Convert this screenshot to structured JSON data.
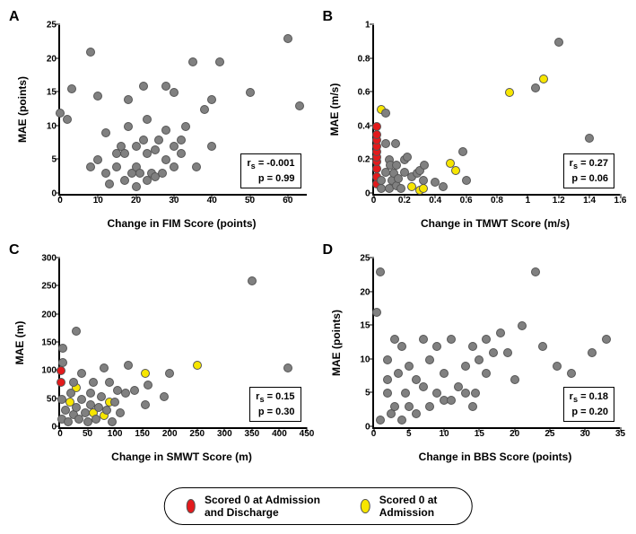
{
  "colors": {
    "gray": "#808080",
    "red": "#e31a1c",
    "yellow": "#f7e600",
    "border": "#555555",
    "bg": "#ffffff"
  },
  "marker_size": 10,
  "legend": {
    "items": [
      {
        "color_key": "red",
        "label": "Scored 0 at Admission and Discharge"
      },
      {
        "color_key": "yellow",
        "label": "Scored 0 at Admission"
      }
    ]
  },
  "panels": [
    {
      "id": "A",
      "label": "A",
      "xlabel": "Change in FIM Score (points)",
      "ylabel": "MAE (points)",
      "xlim": [
        0,
        65
      ],
      "ylim": [
        0,
        25
      ],
      "xticks": [
        0,
        10,
        20,
        30,
        40,
        50,
        60
      ],
      "yticks": [
        0,
        5,
        10,
        15,
        20,
        25
      ],
      "stats": {
        "rs": "-0.001",
        "p": "0.99"
      },
      "points": [
        {
          "x": 0,
          "y": 12,
          "c": "gray"
        },
        {
          "x": 2,
          "y": 11,
          "c": "gray"
        },
        {
          "x": 3,
          "y": 15.5,
          "c": "gray"
        },
        {
          "x": 8,
          "y": 4,
          "c": "gray"
        },
        {
          "x": 8,
          "y": 21,
          "c": "gray"
        },
        {
          "x": 10,
          "y": 5,
          "c": "gray"
        },
        {
          "x": 10,
          "y": 14.5,
          "c": "gray"
        },
        {
          "x": 12,
          "y": 9,
          "c": "gray"
        },
        {
          "x": 13,
          "y": 1.5,
          "c": "gray"
        },
        {
          "x": 12,
          "y": 3,
          "c": "gray"
        },
        {
          "x": 15,
          "y": 4,
          "c": "gray"
        },
        {
          "x": 15,
          "y": 6,
          "c": "gray"
        },
        {
          "x": 16,
          "y": 7,
          "c": "gray"
        },
        {
          "x": 17,
          "y": 6,
          "c": "gray"
        },
        {
          "x": 17,
          "y": 2,
          "c": "gray"
        },
        {
          "x": 18,
          "y": 14,
          "c": "gray"
        },
        {
          "x": 18,
          "y": 10,
          "c": "gray"
        },
        {
          "x": 19,
          "y": 3,
          "c": "gray"
        },
        {
          "x": 20,
          "y": 1,
          "c": "gray"
        },
        {
          "x": 20,
          "y": 4,
          "c": "gray"
        },
        {
          "x": 20,
          "y": 7,
          "c": "gray"
        },
        {
          "x": 21,
          "y": 3,
          "c": "gray"
        },
        {
          "x": 22,
          "y": 16,
          "c": "gray"
        },
        {
          "x": 22,
          "y": 8,
          "c": "gray"
        },
        {
          "x": 23,
          "y": 6,
          "c": "gray"
        },
        {
          "x": 23,
          "y": 2,
          "c": "gray"
        },
        {
          "x": 24,
          "y": 3,
          "c": "gray"
        },
        {
          "x": 23,
          "y": 11,
          "c": "gray"
        },
        {
          "x": 25,
          "y": 6.5,
          "c": "gray"
        },
        {
          "x": 25,
          "y": 2.5,
          "c": "gray"
        },
        {
          "x": 26,
          "y": 8,
          "c": "gray"
        },
        {
          "x": 27,
          "y": 3,
          "c": "gray"
        },
        {
          "x": 28,
          "y": 5,
          "c": "gray"
        },
        {
          "x": 28,
          "y": 16,
          "c": "gray"
        },
        {
          "x": 28,
          "y": 9.5,
          "c": "gray"
        },
        {
          "x": 30,
          "y": 7,
          "c": "gray"
        },
        {
          "x": 30,
          "y": 15,
          "c": "gray"
        },
        {
          "x": 30,
          "y": 4,
          "c": "gray"
        },
        {
          "x": 32,
          "y": 8,
          "c": "gray"
        },
        {
          "x": 32,
          "y": 6,
          "c": "gray"
        },
        {
          "x": 33,
          "y": 10,
          "c": "gray"
        },
        {
          "x": 35,
          "y": 19.5,
          "c": "gray"
        },
        {
          "x": 36,
          "y": 4,
          "c": "gray"
        },
        {
          "x": 38,
          "y": 12.5,
          "c": "gray"
        },
        {
          "x": 40,
          "y": 7,
          "c": "gray"
        },
        {
          "x": 40,
          "y": 14,
          "c": "gray"
        },
        {
          "x": 42,
          "y": 19.5,
          "c": "gray"
        },
        {
          "x": 50,
          "y": 15,
          "c": "gray"
        },
        {
          "x": 60,
          "y": 23,
          "c": "gray"
        },
        {
          "x": 63,
          "y": 13,
          "c": "gray"
        }
      ]
    },
    {
      "id": "B",
      "label": "B",
      "xlabel": "Change in TMWT Score (m/s)",
      "ylabel": "MAE (m/s)",
      "xlim": [
        0,
        1.6
      ],
      "ylim": [
        0,
        1.0
      ],
      "xticks": [
        0,
        0.2,
        0.4,
        0.6,
        0.8,
        1.0,
        1.2,
        1.4,
        1.6
      ],
      "yticks": [
        0,
        0.2,
        0.4,
        0.6,
        0.8,
        1.0
      ],
      "stats": {
        "rs": "0.27",
        "p": "0.06"
      },
      "points": [
        {
          "x": 0.02,
          "y": 0.06,
          "c": "red"
        },
        {
          "x": 0.02,
          "y": 0.1,
          "c": "red"
        },
        {
          "x": 0.02,
          "y": 0.15,
          "c": "red"
        },
        {
          "x": 0.02,
          "y": 0.19,
          "c": "red"
        },
        {
          "x": 0.02,
          "y": 0.22,
          "c": "red"
        },
        {
          "x": 0.02,
          "y": 0.25,
          "c": "red"
        },
        {
          "x": 0.02,
          "y": 0.28,
          "c": "red"
        },
        {
          "x": 0.02,
          "y": 0.32,
          "c": "red"
        },
        {
          "x": 0.02,
          "y": 0.35,
          "c": "red"
        },
        {
          "x": 0.02,
          "y": 0.4,
          "c": "red"
        },
        {
          "x": 0.05,
          "y": 0.5,
          "c": "yellow"
        },
        {
          "x": 0.25,
          "y": 0.04,
          "c": "yellow"
        },
        {
          "x": 0.3,
          "y": 0.02,
          "c": "yellow"
        },
        {
          "x": 0.32,
          "y": 0.03,
          "c": "yellow"
        },
        {
          "x": 0.5,
          "y": 0.18,
          "c": "yellow"
        },
        {
          "x": 0.53,
          "y": 0.14,
          "c": "yellow"
        },
        {
          "x": 0.88,
          "y": 0.6,
          "c": "yellow"
        },
        {
          "x": 1.1,
          "y": 0.68,
          "c": "yellow"
        },
        {
          "x": 0.05,
          "y": 0.03,
          "c": "gray"
        },
        {
          "x": 0.05,
          "y": 0.08,
          "c": "gray"
        },
        {
          "x": 0.08,
          "y": 0.3,
          "c": "gray"
        },
        {
          "x": 0.08,
          "y": 0.48,
          "c": "gray"
        },
        {
          "x": 0.08,
          "y": 0.13,
          "c": "gray"
        },
        {
          "x": 0.1,
          "y": 0.03,
          "c": "gray"
        },
        {
          "x": 0.1,
          "y": 0.2,
          "c": "gray"
        },
        {
          "x": 0.11,
          "y": 0.17,
          "c": "gray"
        },
        {
          "x": 0.12,
          "y": 0.08,
          "c": "gray"
        },
        {
          "x": 0.13,
          "y": 0.12,
          "c": "gray"
        },
        {
          "x": 0.14,
          "y": 0.3,
          "c": "gray"
        },
        {
          "x": 0.15,
          "y": 0.05,
          "c": "gray"
        },
        {
          "x": 0.15,
          "y": 0.17,
          "c": "gray"
        },
        {
          "x": 0.16,
          "y": 0.09,
          "c": "gray"
        },
        {
          "x": 0.18,
          "y": 0.03,
          "c": "gray"
        },
        {
          "x": 0.2,
          "y": 0.13,
          "c": "gray"
        },
        {
          "x": 0.2,
          "y": 0.2,
          "c": "gray"
        },
        {
          "x": 0.22,
          "y": 0.22,
          "c": "gray"
        },
        {
          "x": 0.25,
          "y": 0.1,
          "c": "gray"
        },
        {
          "x": 0.28,
          "y": 0.12,
          "c": "gray"
        },
        {
          "x": 0.3,
          "y": 0.14,
          "c": "gray"
        },
        {
          "x": 0.32,
          "y": 0.08,
          "c": "gray"
        },
        {
          "x": 0.33,
          "y": 0.17,
          "c": "gray"
        },
        {
          "x": 0.4,
          "y": 0.07,
          "c": "gray"
        },
        {
          "x": 0.45,
          "y": 0.04,
          "c": "gray"
        },
        {
          "x": 0.58,
          "y": 0.25,
          "c": "gray"
        },
        {
          "x": 0.6,
          "y": 0.08,
          "c": "gray"
        },
        {
          "x": 1.05,
          "y": 0.63,
          "c": "gray"
        },
        {
          "x": 1.2,
          "y": 0.9,
          "c": "gray"
        },
        {
          "x": 1.4,
          "y": 0.33,
          "c": "gray"
        }
      ]
    },
    {
      "id": "C",
      "label": "C",
      "xlabel": "Change in SMWT Score (m)",
      "ylabel": "MAE (m)",
      "xlim": [
        0,
        450
      ],
      "ylim": [
        0,
        300
      ],
      "xticks": [
        0,
        50,
        100,
        150,
        200,
        250,
        300,
        350,
        400,
        450
      ],
      "yticks": [
        0,
        50,
        100,
        150,
        200,
        250,
        300
      ],
      "stats": {
        "rs": "0.15",
        "p": "0.30"
      },
      "points": [
        {
          "x": 2,
          "y": 80,
          "c": "red"
        },
        {
          "x": 2,
          "y": 100,
          "c": "red"
        },
        {
          "x": 18,
          "y": 45,
          "c": "yellow"
        },
        {
          "x": 30,
          "y": 70,
          "c": "yellow"
        },
        {
          "x": 60,
          "y": 25,
          "c": "yellow"
        },
        {
          "x": 80,
          "y": 20,
          "c": "yellow"
        },
        {
          "x": 90,
          "y": 45,
          "c": "yellow"
        },
        {
          "x": 155,
          "y": 95,
          "c": "yellow"
        },
        {
          "x": 250,
          "y": 110,
          "c": "yellow"
        },
        {
          "x": 3,
          "y": 15,
          "c": "gray"
        },
        {
          "x": 3,
          "y": 50,
          "c": "gray"
        },
        {
          "x": 5,
          "y": 115,
          "c": "gray"
        },
        {
          "x": 5,
          "y": 140,
          "c": "gray"
        },
        {
          "x": 10,
          "y": 30,
          "c": "gray"
        },
        {
          "x": 15,
          "y": 10,
          "c": "gray"
        },
        {
          "x": 20,
          "y": 60,
          "c": "gray"
        },
        {
          "x": 25,
          "y": 22,
          "c": "gray"
        },
        {
          "x": 25,
          "y": 80,
          "c": "gray"
        },
        {
          "x": 30,
          "y": 35,
          "c": "gray"
        },
        {
          "x": 30,
          "y": 170,
          "c": "gray"
        },
        {
          "x": 35,
          "y": 15,
          "c": "gray"
        },
        {
          "x": 40,
          "y": 50,
          "c": "gray"
        },
        {
          "x": 40,
          "y": 95,
          "c": "gray"
        },
        {
          "x": 45,
          "y": 25,
          "c": "gray"
        },
        {
          "x": 50,
          "y": 10,
          "c": "gray"
        },
        {
          "x": 55,
          "y": 40,
          "c": "gray"
        },
        {
          "x": 55,
          "y": 60,
          "c": "gray"
        },
        {
          "x": 60,
          "y": 80,
          "c": "gray"
        },
        {
          "x": 65,
          "y": 15,
          "c": "gray"
        },
        {
          "x": 70,
          "y": 35,
          "c": "gray"
        },
        {
          "x": 75,
          "y": 55,
          "c": "gray"
        },
        {
          "x": 80,
          "y": 105,
          "c": "gray"
        },
        {
          "x": 85,
          "y": 30,
          "c": "gray"
        },
        {
          "x": 90,
          "y": 80,
          "c": "gray"
        },
        {
          "x": 95,
          "y": 10,
          "c": "gray"
        },
        {
          "x": 100,
          "y": 45,
          "c": "gray"
        },
        {
          "x": 105,
          "y": 65,
          "c": "gray"
        },
        {
          "x": 110,
          "y": 25,
          "c": "gray"
        },
        {
          "x": 120,
          "y": 60,
          "c": "gray"
        },
        {
          "x": 125,
          "y": 110,
          "c": "gray"
        },
        {
          "x": 135,
          "y": 65,
          "c": "gray"
        },
        {
          "x": 155,
          "y": 40,
          "c": "gray"
        },
        {
          "x": 160,
          "y": 75,
          "c": "gray"
        },
        {
          "x": 190,
          "y": 55,
          "c": "gray"
        },
        {
          "x": 200,
          "y": 95,
          "c": "gray"
        },
        {
          "x": 350,
          "y": 260,
          "c": "gray"
        },
        {
          "x": 415,
          "y": 105,
          "c": "gray"
        }
      ]
    },
    {
      "id": "D",
      "label": "D",
      "xlabel": "Change in BBS Score (points)",
      "ylabel": "MAE (points)",
      "xlim": [
        0,
        35
      ],
      "ylim": [
        0,
        25
      ],
      "xticks": [
        0,
        5,
        10,
        15,
        20,
        25,
        30,
        35
      ],
      "yticks": [
        0,
        5,
        10,
        15,
        20,
        25
      ],
      "stats": {
        "rs": "0.18",
        "p": "0.20"
      },
      "points": [
        {
          "x": 0.5,
          "y": 17,
          "c": "gray"
        },
        {
          "x": 1,
          "y": 1,
          "c": "gray"
        },
        {
          "x": 1,
          "y": 23,
          "c": "gray"
        },
        {
          "x": 2,
          "y": 5,
          "c": "gray"
        },
        {
          "x": 2,
          "y": 7,
          "c": "gray"
        },
        {
          "x": 2,
          "y": 10,
          "c": "gray"
        },
        {
          "x": 2.5,
          "y": 2,
          "c": "gray"
        },
        {
          "x": 3,
          "y": 13,
          "c": "gray"
        },
        {
          "x": 3,
          "y": 3,
          "c": "gray"
        },
        {
          "x": 3.5,
          "y": 8,
          "c": "gray"
        },
        {
          "x": 4,
          "y": 1,
          "c": "gray"
        },
        {
          "x": 4,
          "y": 12,
          "c": "gray"
        },
        {
          "x": 4.5,
          "y": 5,
          "c": "gray"
        },
        {
          "x": 5,
          "y": 3,
          "c": "gray"
        },
        {
          "x": 5,
          "y": 9,
          "c": "gray"
        },
        {
          "x": 6,
          "y": 2,
          "c": "gray"
        },
        {
          "x": 6,
          "y": 7,
          "c": "gray"
        },
        {
          "x": 7,
          "y": 6,
          "c": "gray"
        },
        {
          "x": 7,
          "y": 13,
          "c": "gray"
        },
        {
          "x": 8,
          "y": 3,
          "c": "gray"
        },
        {
          "x": 8,
          "y": 10,
          "c": "gray"
        },
        {
          "x": 9,
          "y": 12,
          "c": "gray"
        },
        {
          "x": 9,
          "y": 5,
          "c": "gray"
        },
        {
          "x": 10,
          "y": 4,
          "c": "gray"
        },
        {
          "x": 10,
          "y": 8,
          "c": "gray"
        },
        {
          "x": 11,
          "y": 4,
          "c": "gray"
        },
        {
          "x": 11,
          "y": 13,
          "c": "gray"
        },
        {
          "x": 12,
          "y": 6,
          "c": "gray"
        },
        {
          "x": 13,
          "y": 5,
          "c": "gray"
        },
        {
          "x": 13,
          "y": 9,
          "c": "gray"
        },
        {
          "x": 14,
          "y": 12,
          "c": "gray"
        },
        {
          "x": 14,
          "y": 3,
          "c": "gray"
        },
        {
          "x": 14.5,
          "y": 5,
          "c": "gray"
        },
        {
          "x": 15,
          "y": 10,
          "c": "gray"
        },
        {
          "x": 16,
          "y": 8,
          "c": "gray"
        },
        {
          "x": 16,
          "y": 13,
          "c": "gray"
        },
        {
          "x": 17,
          "y": 11,
          "c": "gray"
        },
        {
          "x": 18,
          "y": 14,
          "c": "gray"
        },
        {
          "x": 19,
          "y": 11,
          "c": "gray"
        },
        {
          "x": 20,
          "y": 7,
          "c": "gray"
        },
        {
          "x": 21,
          "y": 15,
          "c": "gray"
        },
        {
          "x": 23,
          "y": 23,
          "c": "gray"
        },
        {
          "x": 24,
          "y": 12,
          "c": "gray"
        },
        {
          "x": 26,
          "y": 9,
          "c": "gray"
        },
        {
          "x": 28,
          "y": 8,
          "c": "gray"
        },
        {
          "x": 29,
          "y": 4,
          "c": "gray"
        },
        {
          "x": 31,
          "y": 11,
          "c": "gray"
        },
        {
          "x": 33,
          "y": 13,
          "c": "gray"
        }
      ]
    }
  ]
}
